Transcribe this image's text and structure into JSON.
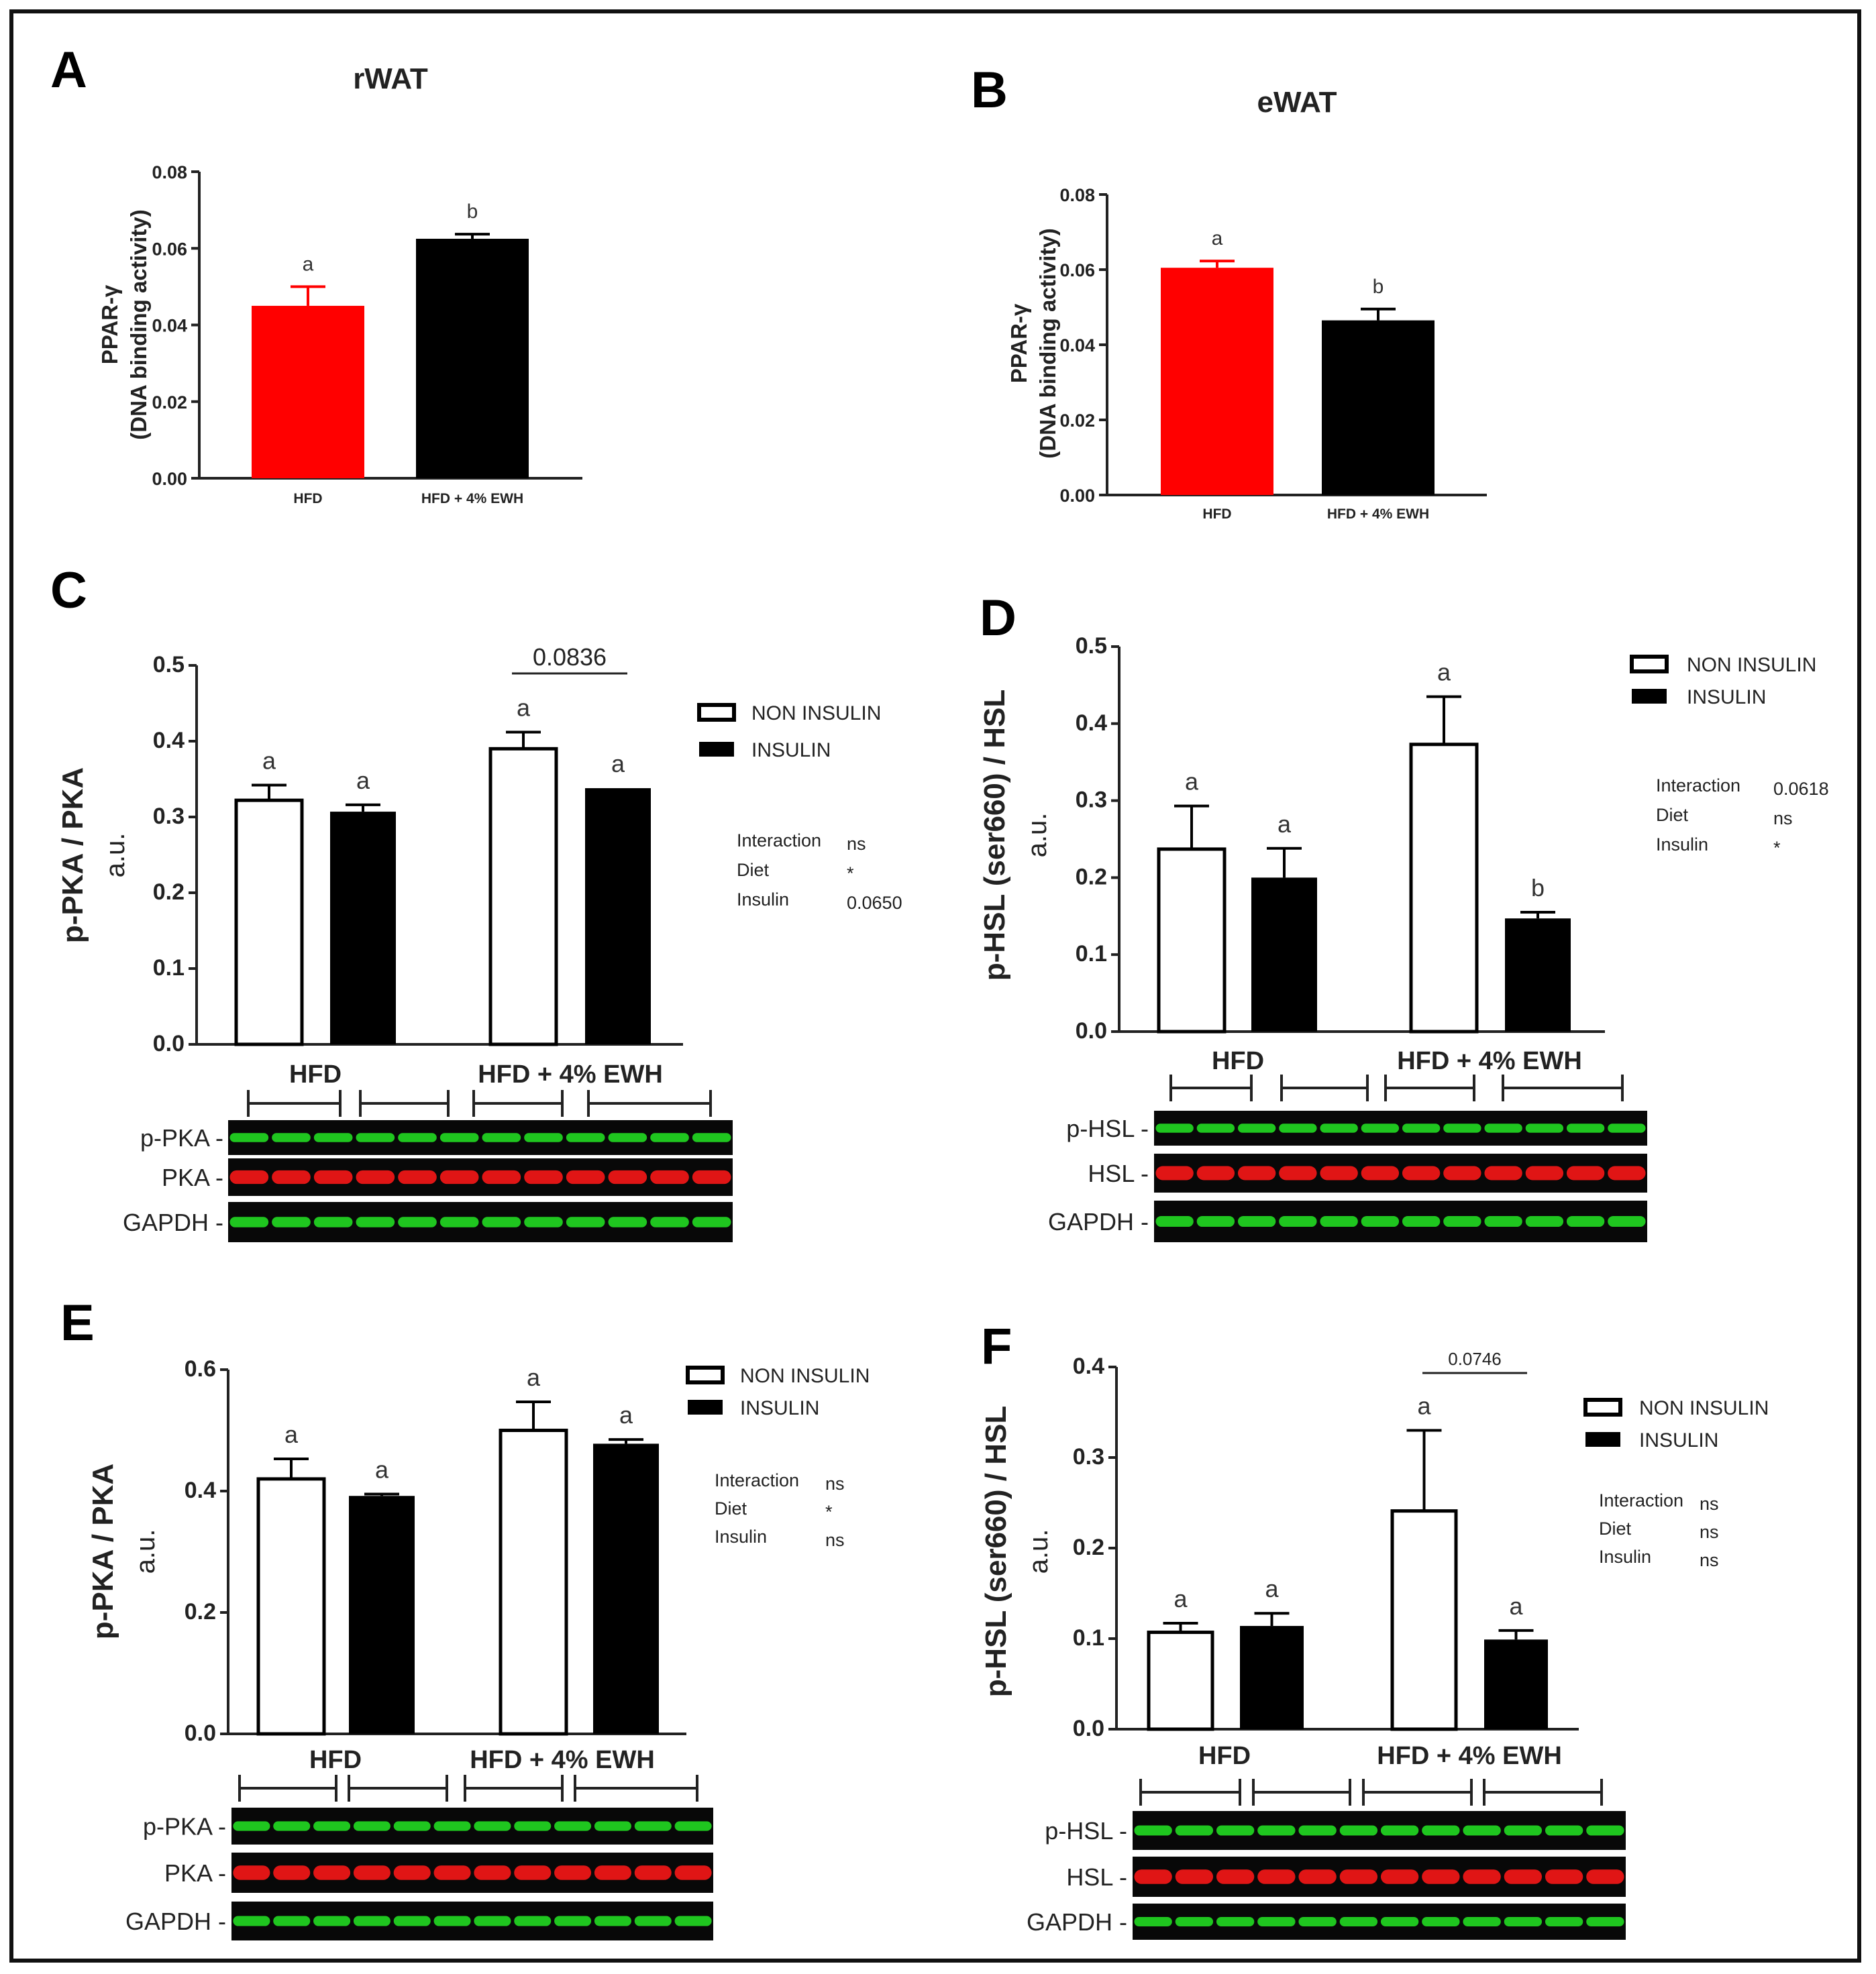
{
  "colors": {
    "red": "#ff0000",
    "black": "#000000",
    "white": "#ffffff",
    "blot_bg": "#080808",
    "green_band": "#1fc61f",
    "red_band": "#e01515"
  },
  "chart_data": [
    {
      "panel": "A",
      "type": "bar",
      "title": "rWAT",
      "ylabel": [
        "PPAR-γ",
        "(DNA binding activity)"
      ],
      "yticks": [
        "0.00",
        "0.02",
        "0.04",
        "0.06",
        "0.08"
      ],
      "ylim": [
        0,
        0.08
      ],
      "categories": [
        "HFD",
        "HFD + 4% EWH"
      ],
      "values": [
        0.045,
        0.0625
      ],
      "errors": [
        0.005,
        0.0012
      ],
      "bar_colors": [
        "red",
        "black"
      ],
      "letters": [
        "a",
        "b"
      ]
    },
    {
      "panel": "B",
      "type": "bar",
      "title": "eWAT",
      "ylabel": [
        "PPAR-γ",
        "(DNA binding activity)"
      ],
      "yticks": [
        "0.00",
        "0.02",
        "0.04",
        "0.06",
        "0.08"
      ],
      "ylim": [
        0,
        0.08
      ],
      "categories": [
        "HFD",
        "HFD + 4% EWH"
      ],
      "values": [
        0.0605,
        0.0465
      ],
      "errors": [
        0.0018,
        0.003
      ],
      "bar_colors": [
        "red",
        "black"
      ],
      "letters": [
        "a",
        "b"
      ]
    },
    {
      "panel": "C",
      "type": "bar",
      "title": "",
      "ylabel": [
        "p-PKA / PKA",
        "a.u."
      ],
      "yticks": [
        "0.0",
        "0.1",
        "0.2",
        "0.3",
        "0.4",
        "0.5"
      ],
      "ylim": [
        0,
        0.5
      ],
      "groups": [
        "HFD",
        "HFD + 4% EWH"
      ],
      "series": [
        {
          "name": "NON INSULIN",
          "values": [
            0.322,
            0.39
          ],
          "errors": [
            0.02,
            0.022
          ],
          "letters": [
            "a",
            "a"
          ]
        },
        {
          "name": "INSULIN",
          "values": [
            0.307,
            0.338
          ],
          "errors": [
            0.009,
            0.0
          ],
          "letters": [
            "a",
            "a"
          ]
        }
      ],
      "pvalue_bracket": "0.0836",
      "stats": [
        {
          "label": "Interaction",
          "value": "ns"
        },
        {
          "label": "Diet",
          "value": "*"
        },
        {
          "label": "Insulin",
          "value": "0.0650"
        }
      ],
      "blot_rows": [
        "p-PKA -",
        "PKA -",
        "GAPDH -"
      ]
    },
    {
      "panel": "D",
      "type": "bar",
      "title": "",
      "ylabel": [
        "p-HSL (ser660) / HSL",
        "a.u."
      ],
      "yticks": [
        "0.0",
        "0.1",
        "0.2",
        "0.3",
        "0.4",
        "0.5"
      ],
      "ylim": [
        0,
        0.5
      ],
      "groups": [
        "HFD",
        "HFD + 4% EWH"
      ],
      "series": [
        {
          "name": "NON INSULIN",
          "values": [
            0.237,
            0.373
          ],
          "errors": [
            0.056,
            0.062
          ],
          "letters": [
            "a",
            "a"
          ]
        },
        {
          "name": "INSULIN",
          "values": [
            0.2,
            0.147
          ],
          "errors": [
            0.038,
            0.008
          ],
          "letters": [
            "a",
            "b"
          ]
        }
      ],
      "pvalue_bracket": "",
      "stats": [
        {
          "label": "Interaction",
          "value": "0.0618"
        },
        {
          "label": "Diet",
          "value": "ns"
        },
        {
          "label": "Insulin",
          "value": "*"
        }
      ],
      "blot_rows": [
        "p-HSL -",
        "HSL -",
        "GAPDH -"
      ]
    },
    {
      "panel": "E",
      "type": "bar",
      "title": "",
      "ylabel": [
        "p-PKA / PKA",
        "a.u."
      ],
      "yticks": [
        "0.0",
        "0.2",
        "0.4",
        "0.6"
      ],
      "ylim": [
        0,
        0.6
      ],
      "groups": [
        "HFD",
        "HFD + 4% EWH"
      ],
      "series": [
        {
          "name": "NON INSULIN",
          "values": [
            0.42,
            0.5
          ],
          "errors": [
            0.033,
            0.047
          ],
          "letters": [
            "a",
            "a"
          ]
        },
        {
          "name": "INSULIN",
          "values": [
            0.392,
            0.478
          ],
          "errors": [
            0.003,
            0.007
          ],
          "letters": [
            "a",
            "a"
          ]
        }
      ],
      "pvalue_bracket": "",
      "stats": [
        {
          "label": "Interaction",
          "value": "ns"
        },
        {
          "label": "Diet",
          "value": "*"
        },
        {
          "label": "Insulin",
          "value": "ns"
        }
      ],
      "blot_rows": [
        "p-PKA -",
        "PKA -",
        "GAPDH -"
      ]
    },
    {
      "panel": "F",
      "type": "bar",
      "title": "",
      "ylabel": [
        "p-HSL (ser660) / HSL",
        "a.u."
      ],
      "yticks": [
        "0.0",
        "0.1",
        "0.2",
        "0.3",
        "0.4"
      ],
      "ylim": [
        0,
        0.4
      ],
      "groups": [
        "HFD",
        "HFD + 4% EWH"
      ],
      "series": [
        {
          "name": "NON INSULIN",
          "values": [
            0.107,
            0.241
          ],
          "errors": [
            0.01,
            0.089
          ],
          "letters": [
            "a",
            "a"
          ]
        },
        {
          "name": "INSULIN",
          "values": [
            0.114,
            0.099
          ],
          "errors": [
            0.014,
            0.01
          ],
          "letters": [
            "a",
            "a"
          ]
        }
      ],
      "pvalue_bracket": "0.0746",
      "stats": [
        {
          "label": "Interaction",
          "value": "ns"
        },
        {
          "label": "Diet",
          "value": "ns"
        },
        {
          "label": "Insulin",
          "value": "ns"
        }
      ],
      "blot_rows": [
        "p-HSL -",
        "HSL -",
        "GAPDH -"
      ]
    }
  ]
}
